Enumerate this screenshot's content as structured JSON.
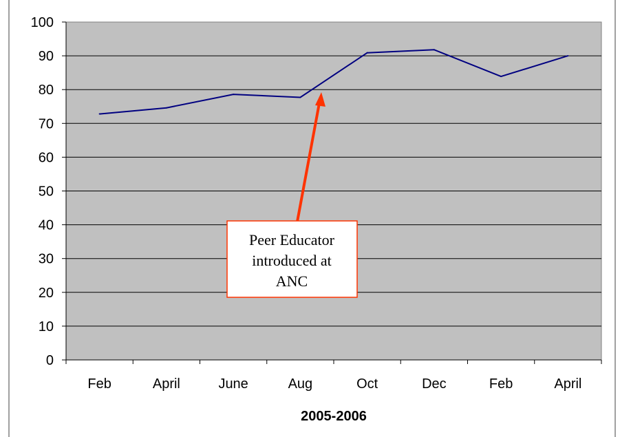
{
  "chart_data": {
    "type": "line",
    "title": "",
    "xlabel": "2005-2006",
    "ylabel": "",
    "categories": [
      "Feb",
      "April",
      "June",
      "Aug",
      "Oct",
      "Dec",
      "Feb",
      "April"
    ],
    "series": [
      {
        "values": [
          72.8,
          74.6,
          78.6,
          77.7,
          90.9,
          91.8,
          83.9,
          90.0
        ]
      }
    ],
    "ylim": [
      0,
      100
    ],
    "yticks": [
      0,
      10,
      20,
      30,
      40,
      50,
      60,
      70,
      80,
      90,
      100
    ],
    "grid": true,
    "legend": "none",
    "colors": {
      "plot_background": "#c0c0c0",
      "line": "#000080",
      "gridline": "#000000",
      "arrow": "#ff3300",
      "annotation_border": "#ff3300"
    },
    "annotation": {
      "lines": [
        "Peer Educator",
        "introduced at",
        "ANC"
      ]
    }
  }
}
